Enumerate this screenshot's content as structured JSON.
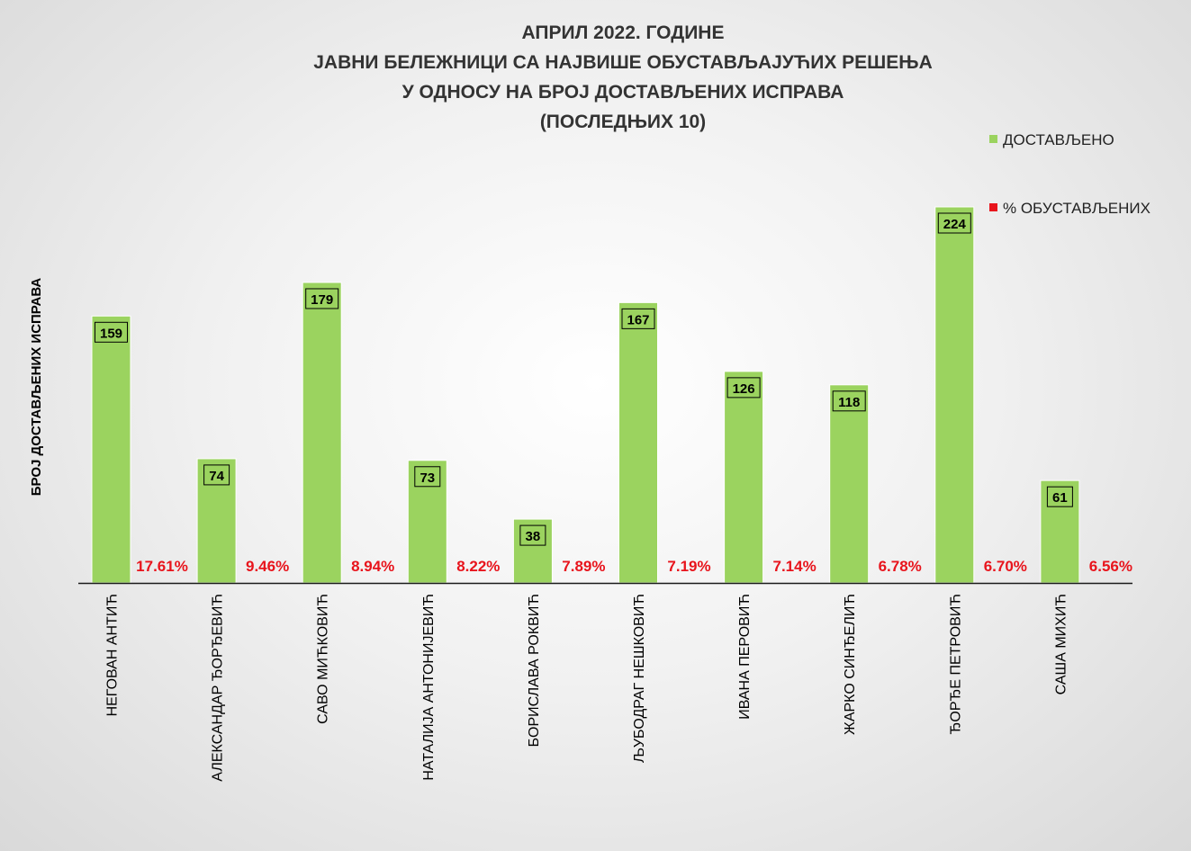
{
  "chart_data": {
    "type": "bar",
    "title_lines": [
      "АПРИЛ 2022. ГОДИНЕ",
      "ЈАВНИ БЕЛЕЖНИЦИ СА НАЈВИШЕ ОБУСТАВЉАЈУЋИХ РЕШЕЊА",
      "У ОДНОСУ НА БРОЈ ДОСТАВЉЕНИХ ИСПРАВА",
      "(ПОСЛЕДЊИХ 10)"
    ],
    "ylabel": "БРОЈ ДОСТАВЉЕНИХ ИСПРАВА",
    "xlabel": "",
    "legend_position": "top-right",
    "grid": false,
    "ylim": [
      0,
      250
    ],
    "categories": [
      "НЕГОВАН АНТИЋ",
      "АЛЕКСАНДАР ЂОРЂЕВИЋ",
      "САВО МИЋКОВИЋ",
      "НАТАЛИЈА АНТОНИЈЕВИЋ",
      "БОРИСЛАВА РОКВИЋ",
      "ЉУБОДРАГ НЕШКОВИЋ",
      "ИВАНА ПЕРОВИЋ",
      "ЖАРКО СИНЂЕЛИЋ",
      "ЂОРЂЕ ПЕТРОВИЋ",
      "САША МИХИЋ"
    ],
    "series": [
      {
        "name": "ДОСТАВЉЕНО",
        "color": "#9bd35f",
        "values": [
          159,
          74,
          179,
          73,
          38,
          167,
          126,
          118,
          224,
          61
        ]
      },
      {
        "name": "% ОБУСТАВЉЕНИХ",
        "color": "#e8141c",
        "values": [
          17.61,
          9.46,
          8.94,
          8.22,
          7.89,
          7.19,
          7.14,
          6.78,
          6.7,
          6.56
        ],
        "labels": [
          "17.61%",
          "9.46%",
          "8.94%",
          "8.22%",
          "7.89%",
          "7.19%",
          "7.14%",
          "6.78%",
          "6.70%",
          "6.56%"
        ]
      }
    ]
  }
}
